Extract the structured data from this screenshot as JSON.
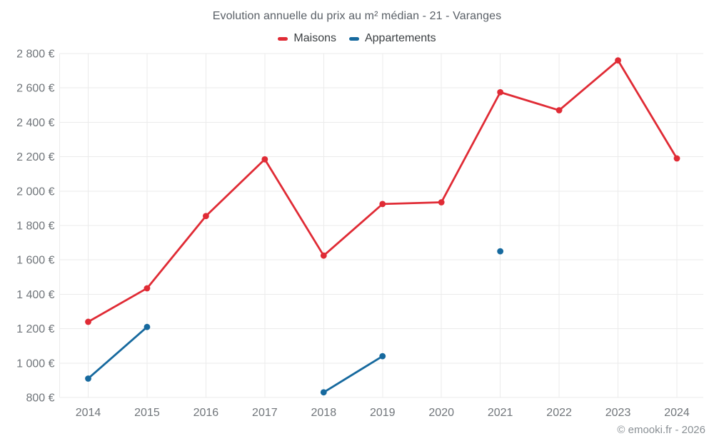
{
  "chart": {
    "title": "Evolution annuelle du prix au m² médian - 21 - Varanges",
    "footer": "© emooki.fr - 2026"
  },
  "chart_data": {
    "type": "line",
    "title": "Evolution annuelle du prix au m² médian - 21 - Varanges",
    "categories": [
      "2014",
      "2015",
      "2016",
      "2017",
      "2018",
      "2019",
      "2020",
      "2021",
      "2022",
      "2023",
      "2024"
    ],
    "series": [
      {
        "name": "Maisons",
        "color": "#e02b35",
        "values": [
          1240,
          1435,
          1855,
          2185,
          1625,
          1925,
          1935,
          2575,
          2470,
          2760,
          2190
        ]
      },
      {
        "name": "Appartements",
        "color": "#16699e",
        "values": [
          910,
          1210,
          null,
          null,
          830,
          1040,
          null,
          1650,
          null,
          null,
          null
        ]
      }
    ],
    "xlabel": "",
    "ylabel": "",
    "ylim": [
      800,
      2800
    ],
    "y_tick_step": 200,
    "y_tick_labels": [
      "800 €",
      "1 000 €",
      "1 200 €",
      "1 400 €",
      "1 600 €",
      "1 800 €",
      "2 000 €",
      "2 200 €",
      "2 400 €",
      "2 600 €",
      "2 800 €"
    ],
    "grid": true,
    "legend_position": "top",
    "currency": "€"
  }
}
